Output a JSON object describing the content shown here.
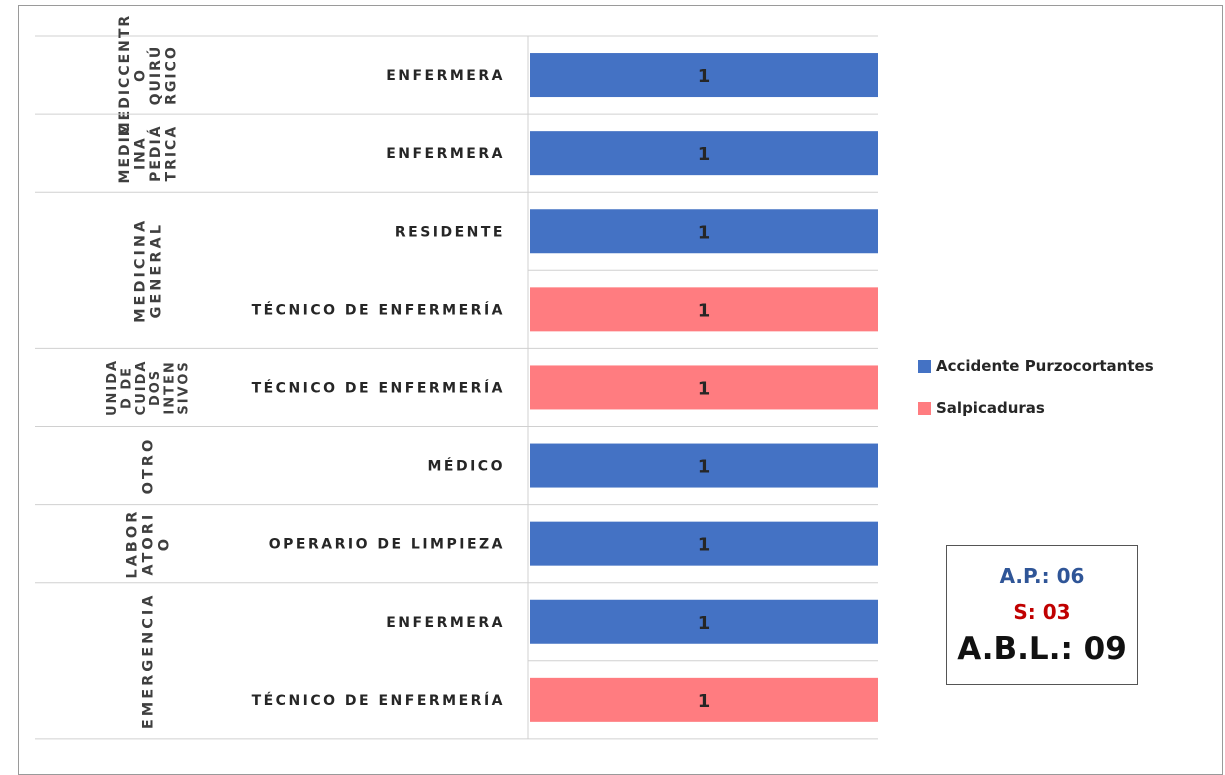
{
  "colors": {
    "accidente": "#4472c4",
    "salpicaduras": "#ff7c80"
  },
  "chart_data": {
    "type": "bar",
    "orientation": "horizontal",
    "xlim": [
      0,
      1
    ],
    "groups": [
      {
        "lines": [
          "MEDICCENTR",
          "O",
          "QUIRÚ",
          "RGICO"
        ],
        "rows": [
          {
            "label": "ENFERMERA",
            "series": "Accidente Purzocortantes",
            "value": 1
          }
        ]
      },
      {
        "lines": [
          "MEDIC",
          "INA",
          "PEDIÁ",
          "TRICA"
        ],
        "rows": [
          {
            "label": "ENFERMERA",
            "series": "Accidente Purzocortantes",
            "value": 1
          }
        ]
      },
      {
        "lines": [
          "MEDICINA",
          "GENERAL"
        ],
        "rows": [
          {
            "label": "RESIDENTE",
            "series": "Accidente Purzocortantes",
            "value": 1
          },
          {
            "label": "TÉCNICO DE ENFERMERÍA",
            "series": "Salpicaduras",
            "value": 1
          }
        ]
      },
      {
        "lines": [
          "UNIDA",
          "D DE",
          "CUIDA",
          "DOS",
          "INTEN",
          "SIVOS"
        ],
        "rows": [
          {
            "label": "TÉCNICO DE ENFERMERÍA",
            "series": "Salpicaduras",
            "value": 1
          }
        ]
      },
      {
        "lines": [
          "OTRO"
        ],
        "rows": [
          {
            "label": "MÉDICO",
            "series": "Accidente Purzocortantes",
            "value": 1
          }
        ]
      },
      {
        "lines": [
          "LABOR",
          "ATORI",
          "O"
        ],
        "rows": [
          {
            "label": "OPERARIO DE LIMPIEZA",
            "series": "Accidente Purzocortantes",
            "value": 1
          }
        ]
      },
      {
        "lines": [
          "EMERGENCIA"
        ],
        "rows": [
          {
            "label": "ENFERMERA",
            "series": "Accidente Purzocortantes",
            "value": 1
          },
          {
            "label": "TÉCNICO DE ENFERMERÍA",
            "series": "Salpicaduras",
            "value": 1
          }
        ]
      }
    ],
    "legend": {
      "position": "right",
      "items": [
        "Accidente Purzocortantes",
        "Salpicaduras"
      ]
    }
  },
  "summary": {
    "ap": "A.P.: 06",
    "s": "S: 03",
    "abl": "A.B.L.: 09"
  }
}
